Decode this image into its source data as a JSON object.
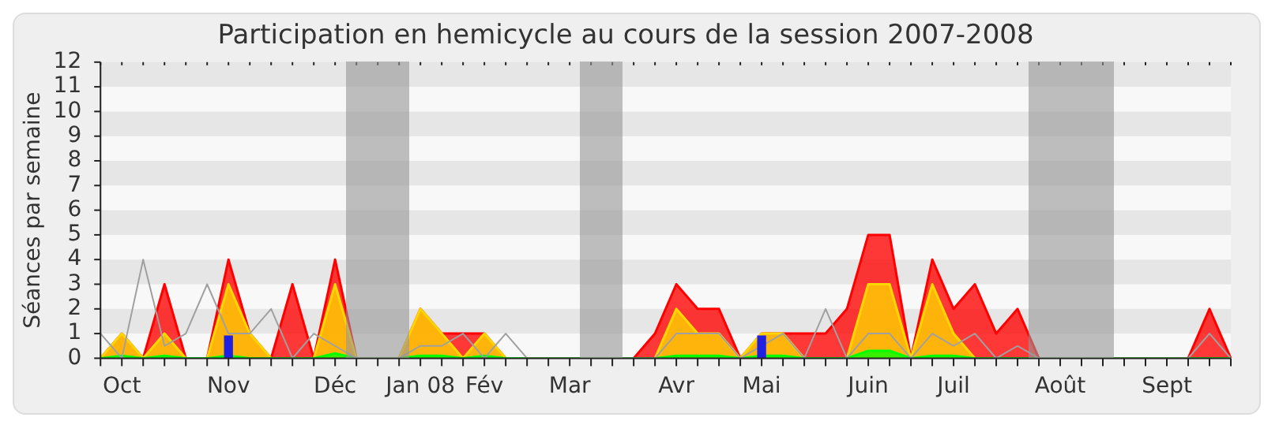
{
  "chart_data": {
    "type": "area",
    "title": "Participation en hemicycle au cours de la session 2007-2008",
    "ylabel": "Séances par semaine",
    "categories": [
      null,
      "Oct",
      null,
      null,
      null,
      null,
      "Nov",
      null,
      null,
      null,
      null,
      "Déc",
      null,
      null,
      null,
      "Jan 08",
      null,
      null,
      "Fév",
      null,
      null,
      null,
      "Mar",
      null,
      null,
      null,
      null,
      "Avr",
      null,
      null,
      null,
      "Mai",
      null,
      null,
      null,
      null,
      "Juin",
      null,
      null,
      null,
      "Juil",
      null,
      null,
      null,
      null,
      "Août",
      null,
      null,
      null,
      null,
      "Sept",
      null,
      null,
      null
    ],
    "series": [
      {
        "color": "#ff0000",
        "values": [
          0,
          1,
          0,
          3,
          0,
          0,
          4,
          1,
          0,
          3,
          0,
          4,
          0,
          0,
          0,
          2,
          1,
          1,
          1,
          0,
          0,
          0,
          0,
          0,
          0,
          0,
          1,
          3,
          2,
          2,
          0,
          1,
          1,
          1,
          1,
          2,
          5,
          5,
          0,
          4,
          2,
          3,
          1,
          2,
          0,
          0,
          0,
          0,
          0,
          0,
          0,
          0,
          2,
          0
        ]
      },
      {
        "color": "#ffd700",
        "values": [
          0,
          1,
          0,
          1,
          0,
          0,
          3,
          1,
          0,
          0,
          0,
          3,
          0,
          0,
          0,
          2,
          1,
          0,
          1,
          0,
          0,
          0,
          0,
          0,
          0,
          0,
          0,
          2,
          1,
          1,
          0,
          1,
          1,
          0,
          0,
          0,
          3,
          3,
          0,
          3,
          1,
          0,
          0,
          0,
          0,
          0,
          0,
          0,
          0,
          0,
          0,
          0,
          0,
          0
        ]
      },
      {
        "color": "#00ff00",
        "values": [
          0,
          0.1,
          0,
          0.1,
          0,
          0,
          0.1,
          0,
          0,
          0,
          0,
          0.2,
          0,
          0,
          0,
          0.1,
          0.1,
          0,
          0.1,
          0,
          0,
          0,
          0,
          0,
          0,
          0,
          0,
          0.1,
          0.1,
          0.1,
          0,
          0.1,
          0.1,
          0,
          0,
          0,
          0.3,
          0.3,
          0,
          0.1,
          0.1,
          0,
          0,
          0,
          0,
          0,
          0,
          0,
          0,
          0,
          0,
          0,
          0,
          0
        ]
      },
      {
        "type": "line",
        "color": "#a0a0a0",
        "values": [
          1,
          0,
          4,
          0.5,
          1,
          3,
          1,
          1,
          2,
          0,
          1,
          0.5,
          0,
          0,
          0,
          0.5,
          0.5,
          1,
          0,
          1,
          0,
          0,
          0,
          0,
          0,
          0,
          0,
          1,
          1,
          1,
          0,
          0.5,
          1,
          0,
          2,
          0,
          1,
          1,
          0,
          1,
          0.5,
          1,
          0,
          0.5,
          0,
          0,
          0,
          0,
          0,
          0,
          0,
          0,
          1,
          0
        ]
      },
      {
        "type": "bar",
        "color": "#2020e0",
        "x": [
          "Nov",
          "Mai"
        ],
        "values": [
          0.9,
          0.9
        ]
      }
    ],
    "ylim": [
      0,
      12
    ],
    "yticks": [
      0,
      1,
      2,
      3,
      4,
      5,
      6,
      7,
      8,
      9,
      10,
      11,
      12
    ],
    "legend": false,
    "marker": "none"
  }
}
